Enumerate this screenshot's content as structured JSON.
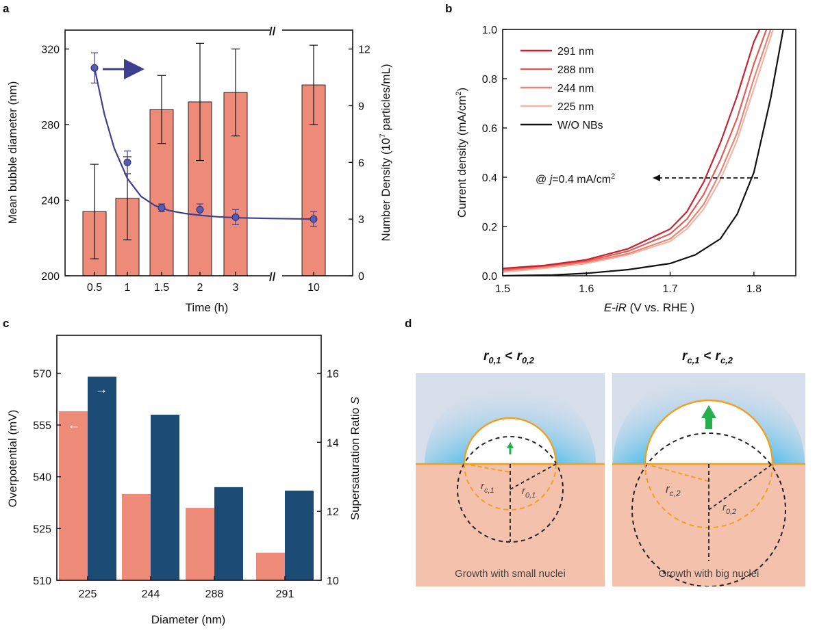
{
  "panel_labels": {
    "a": "a",
    "b": "b",
    "c": "c",
    "d": "d"
  },
  "chart_data": [
    {
      "panel": "a",
      "type": "bar",
      "xlabel": "Time (h)",
      "ylabel": "Mean bubble diameter (nm)",
      "y2label_main": "Number Density (10",
      "y2label_sup": "7",
      "y2label_tail": " particles/mL)",
      "categories": [
        "0.5",
        "1",
        "1.5",
        "2",
        "3",
        "10"
      ],
      "ylim": [
        200,
        330
      ],
      "yticks": [
        "200",
        "240",
        "280",
        "320"
      ],
      "y2lim": [
        0,
        13
      ],
      "y2ticks": [
        "0",
        "3",
        "6",
        "9",
        "12"
      ],
      "axis_break": "//",
      "series": [
        {
          "axis": "left",
          "kind": "bar",
          "color": "#ee8b78",
          "values": [
            234,
            241,
            288,
            292,
            297,
            301
          ],
          "errors": [
            25,
            22,
            18,
            31,
            23,
            21
          ]
        },
        {
          "axis": "right",
          "kind": "scatter+line",
          "color": "#3d3f8f",
          "values": [
            11.0,
            6.0,
            3.6,
            3.5,
            3.1,
            3.0
          ],
          "errors": [
            0.8,
            0.6,
            0.2,
            0.3,
            0.4,
            0.4
          ]
        }
      ],
      "fit_line": {
        "x": [
          0,
          0.3,
          0.6,
          1.0,
          1.4,
          1.8,
          2.2,
          2.6,
          3.0,
          3.5,
          4.0,
          4.5,
          5.0
        ],
        "y": [
          11.0,
          8.55,
          6.75,
          5.15,
          4.2,
          3.72,
          3.45,
          3.3,
          3.2,
          3.12,
          3.07,
          3.03,
          3.0
        ]
      }
    },
    {
      "panel": "b",
      "type": "line",
      "xlabel_italic": "E-iR",
      "xlabel_rest": " (V vs. RHE )",
      "ylabel_main": "Current density (mA/cm",
      "ylabel_sup": "2",
      "ylabel_tail": ")",
      "xlim": [
        1.5,
        1.85
      ],
      "ylim": [
        0,
        1.0
      ],
      "xticks": [
        "1.5",
        "1.6",
        "1.7",
        "1.8"
      ],
      "yticks": [
        "0.0",
        "0.2",
        "0.4",
        "0.6",
        "0.8",
        "1.0"
      ],
      "annotation_pre": "@ ",
      "annotation_italic": "j",
      "annotation_main": "=0.4 mA/cm",
      "annotation_sup": "2",
      "annotation_y": 0.4,
      "legend_position": "top-left",
      "series": [
        {
          "name": "291 nm",
          "color": "#c8212f",
          "x": [
            1.5,
            1.55,
            1.6,
            1.65,
            1.7,
            1.72,
            1.74,
            1.76,
            1.78,
            1.8,
            1.807
          ],
          "y": [
            0.03,
            0.042,
            0.065,
            0.11,
            0.19,
            0.26,
            0.38,
            0.54,
            0.73,
            0.95,
            1.0
          ]
        },
        {
          "name": "288 nm",
          "color": "#de5b58",
          "x": [
            1.5,
            1.55,
            1.6,
            1.65,
            1.7,
            1.72,
            1.74,
            1.76,
            1.78,
            1.8,
            1.815
          ],
          "y": [
            0.025,
            0.04,
            0.06,
            0.1,
            0.17,
            0.23,
            0.33,
            0.47,
            0.64,
            0.86,
            1.0
          ]
        },
        {
          "name": "244 nm",
          "color": "#ea8574",
          "x": [
            1.5,
            1.55,
            1.6,
            1.65,
            1.7,
            1.72,
            1.74,
            1.76,
            1.78,
            1.8,
            1.82
          ],
          "y": [
            0.02,
            0.035,
            0.055,
            0.09,
            0.15,
            0.205,
            0.29,
            0.42,
            0.58,
            0.8,
            1.0
          ]
        },
        {
          "name": "225 nm",
          "color": "#f2b5a6",
          "x": [
            1.5,
            1.55,
            1.6,
            1.65,
            1.7,
            1.72,
            1.74,
            1.76,
            1.78,
            1.8,
            1.823
          ],
          "y": [
            0.015,
            0.03,
            0.05,
            0.085,
            0.14,
            0.19,
            0.27,
            0.39,
            0.55,
            0.76,
            1.0
          ]
        },
        {
          "name": "W/O NBs",
          "color": "#111111",
          "x": [
            1.5,
            1.53,
            1.56,
            1.6,
            1.65,
            1.7,
            1.73,
            1.76,
            1.78,
            1.8,
            1.82,
            1.835
          ],
          "y": [
            0.0,
            0.002,
            0.003,
            0.01,
            0.025,
            0.05,
            0.085,
            0.15,
            0.25,
            0.42,
            0.72,
            1.0
          ]
        }
      ]
    },
    {
      "panel": "c",
      "type": "bar",
      "xlabel": "Diameter (nm)",
      "ylabel": "Overpotential (mV)",
      "y2label_main": "Supersaturation Ratio ",
      "y2label_italic": "S",
      "categories": [
        "225",
        "244",
        "288",
        "291"
      ],
      "ylim": [
        510,
        581
      ],
      "yticks": [
        "510",
        "525",
        "540",
        "555",
        "570"
      ],
      "y2lim": [
        10,
        17.1
      ],
      "y2ticks": [
        "10",
        "12",
        "14",
        "16"
      ],
      "left_arrow": "←",
      "right_arrow": "→",
      "series": [
        {
          "axis": "left",
          "color": "#ee8b78",
          "values": [
            559,
            535,
            531,
            518
          ]
        },
        {
          "axis": "right",
          "color": "#1c4b75",
          "values": [
            15.9,
            14.8,
            12.7,
            12.6
          ]
        }
      ]
    }
  ],
  "diagram": {
    "left_title_r": "r",
    "left_title_sub1": "0,1",
    "left_title_sub2": "0,2",
    "right_title_r": "r",
    "right_title_sub1": "c,1",
    "right_title_sub2": "c,2",
    "less_than": "<",
    "left_caption": "Growth with small nuclei",
    "right_caption": "Growth with big nuclei",
    "label_r": "r",
    "left_rc_sub": "c,1",
    "left_r0_sub": "0,1",
    "right_rc_sub": "c,2",
    "right_r0_sub": "0,2",
    "colors": {
      "liquid": "#f4c1ad",
      "gas_bg": "#d7deeb",
      "glow": "#3bb8ea",
      "bubble_edge": "#f0a020",
      "arrow": "#26b04b"
    }
  }
}
